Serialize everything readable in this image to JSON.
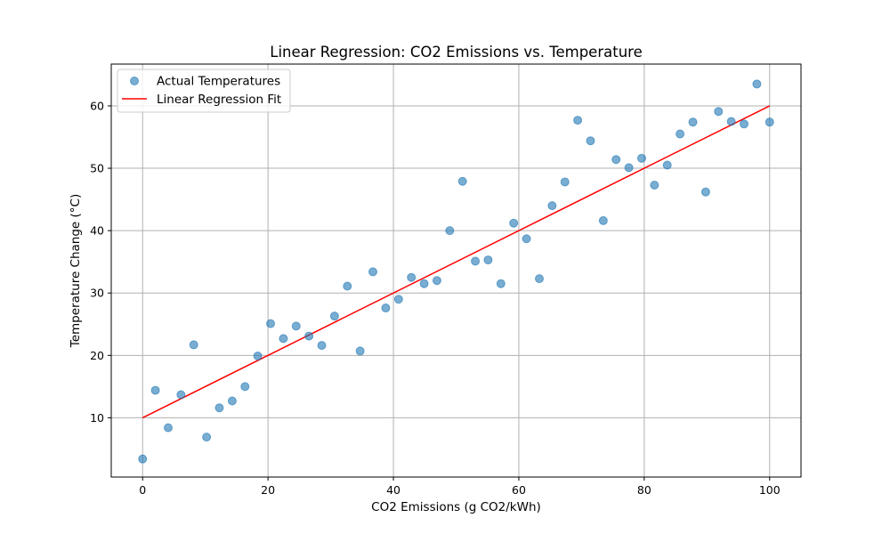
{
  "chart_data": {
    "type": "scatter",
    "title": "Linear Regression: CO2 Emissions vs. Temperature",
    "xlabel": "CO2 Emissions (g CO2/kWh)",
    "ylabel": "Temperature Change (°C)",
    "xlim": [
      -5,
      105
    ],
    "ylim": [
      0.5,
      66.7
    ],
    "xticks": [
      0,
      20,
      40,
      60,
      80,
      100
    ],
    "yticks": [
      10,
      20,
      30,
      40,
      50,
      60
    ],
    "grid": true,
    "legend_position": "upper-left",
    "colors": {
      "points": "#1f77b4",
      "fit_line": "#ff0000"
    },
    "series": [
      {
        "name": "Actual Temperatures",
        "kind": "scatter",
        "x": [
          0,
          2.04,
          4.08,
          6.12,
          8.16,
          10.2,
          12.24,
          14.29,
          16.33,
          18.37,
          20.41,
          22.45,
          24.49,
          26.53,
          28.57,
          30.61,
          32.65,
          34.69,
          36.73,
          38.78,
          40.82,
          42.86,
          44.9,
          46.94,
          48.98,
          51.02,
          53.06,
          55.1,
          57.14,
          59.18,
          61.22,
          63.27,
          65.31,
          67.35,
          69.39,
          71.43,
          73.47,
          75.51,
          77.55,
          79.59,
          81.63,
          83.67,
          85.71,
          87.76,
          89.8,
          91.84,
          93.88,
          95.92,
          97.96,
          100
        ],
        "y": [
          3.4,
          14.4,
          8.4,
          13.7,
          21.7,
          6.9,
          11.6,
          12.7,
          15.0,
          19.9,
          25.1,
          22.7,
          24.7,
          23.1,
          21.6,
          26.3,
          31.1,
          20.7,
          33.4,
          27.6,
          29.0,
          32.5,
          31.5,
          32.0,
          40.0,
          47.9,
          35.1,
          35.3,
          31.5,
          41.2,
          38.7,
          32.3,
          44.0,
          47.8,
          57.7,
          54.4,
          41.6,
          51.4,
          50.1,
          51.6,
          47.3,
          50.5,
          55.5,
          57.4,
          46.2,
          59.1,
          57.5,
          57.1,
          63.5,
          57.4
        ]
      },
      {
        "name": "Linear Regression Fit",
        "kind": "line",
        "x": [
          0,
          100
        ],
        "y": [
          10,
          60
        ]
      }
    ]
  }
}
